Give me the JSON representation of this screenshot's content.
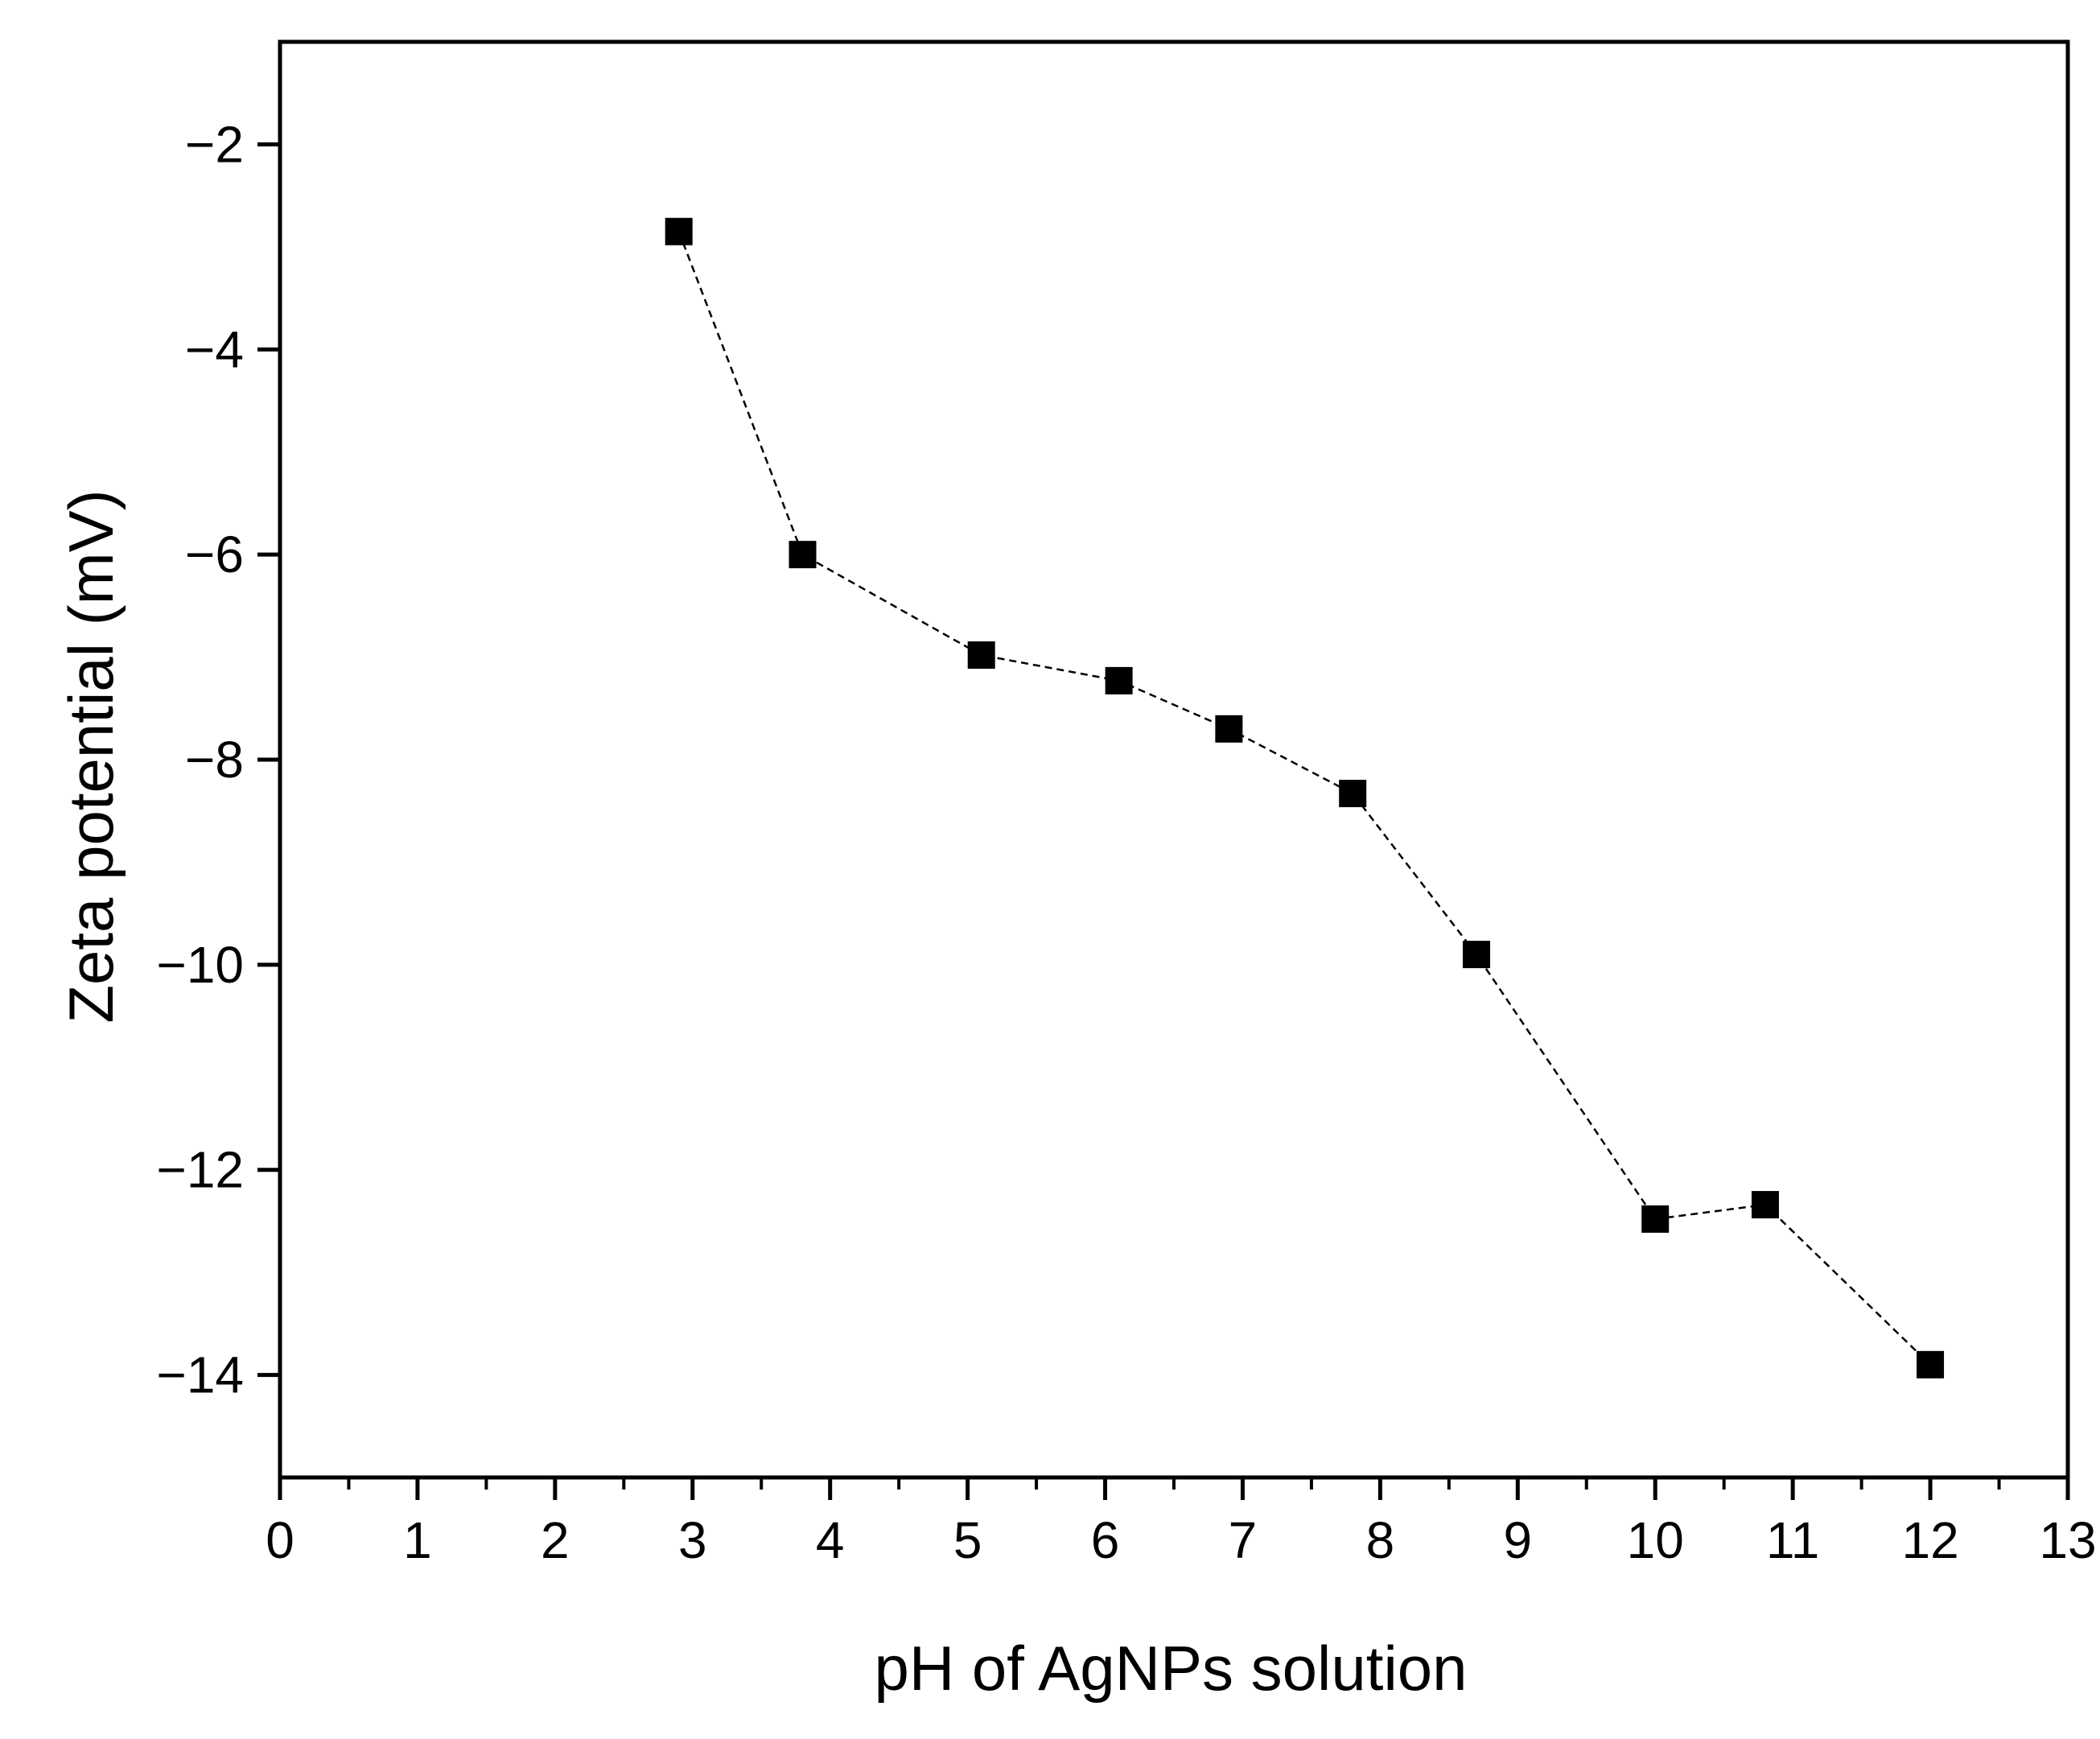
{
  "chart_data": {
    "type": "scatter",
    "connected_by": "dashed-line",
    "marker": "filled-square",
    "title": "",
    "xlabel": "pH  of AgNPs solution",
    "ylabel": "Zeta potential (mV)",
    "xlim": [
      0,
      13
    ],
    "ylim": [
      -15,
      -1
    ],
    "x_ticks": [
      0,
      1,
      2,
      3,
      4,
      5,
      6,
      7,
      8,
      9,
      10,
      11,
      12,
      13
    ],
    "y_ticks": [
      -2,
      -4,
      -6,
      -8,
      -10,
      -12,
      -14
    ],
    "x_tick_labels": [
      "0",
      "1",
      "2",
      "3",
      "4",
      "5",
      "6",
      "7",
      "8",
      "9",
      "10",
      "11",
      "12",
      "13"
    ],
    "y_tick_labels": [
      "−2",
      "−4",
      "−6",
      "−8",
      "−10",
      "−12",
      "−14"
    ],
    "grid": false,
    "series": [
      {
        "x": [
          2.9,
          3.8,
          5.1,
          6.1,
          6.9,
          7.8,
          8.7,
          10.0,
          10.8,
          12.0
        ],
        "y": [
          -2.85,
          -6.0,
          -6.98,
          -7.23,
          -7.7,
          -8.33,
          -9.9,
          -12.48,
          -12.34,
          -13.9
        ],
        "color": "#000000"
      }
    ]
  }
}
